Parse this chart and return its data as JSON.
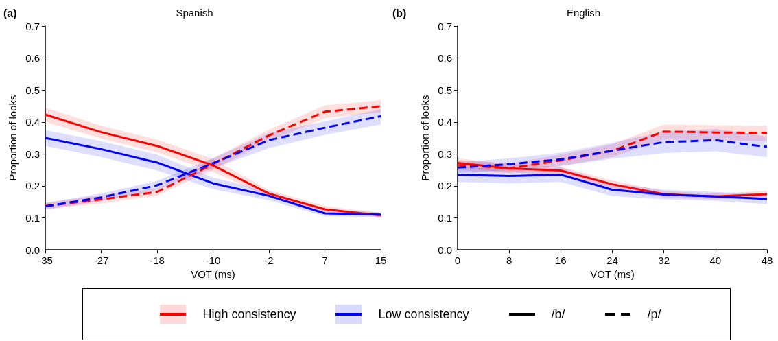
{
  "chart_data": [
    {
      "type": "line",
      "title": "Spanish",
      "xlabel": "VOT (ms)",
      "ylabel": "Proportion of looks",
      "categories": [
        "-35",
        "-27",
        "-18",
        "-10",
        "-2",
        "7",
        "15"
      ],
      "ylim": [
        0,
        0.7
      ],
      "yticks": [
        {
          "value": 0,
          "label": "0.0"
        },
        0.1,
        0.2,
        0.3,
        0.4,
        0.5,
        0.6,
        0.7
      ],
      "annotations": [
        "(a)"
      ],
      "legend": "bottom",
      "series": [
        {
          "name": "High consistency",
          "color": "#ff0000",
          "line_style": "solid",
          "values": [
            0.423,
            0.368,
            0.325,
            0.264,
            0.176,
            0.127,
            0.108
          ],
          "lower": [
            0.4,
            0.348,
            0.305,
            0.244,
            0.165,
            0.117,
            0.1
          ],
          "upper": [
            0.445,
            0.388,
            0.345,
            0.284,
            0.187,
            0.137,
            0.116
          ]
        },
        {
          "name": "Low consistency",
          "color": "#0000ff",
          "line_style": "solid",
          "values": [
            0.35,
            0.315,
            0.273,
            0.208,
            0.169,
            0.114,
            0.11
          ],
          "lower": [
            0.325,
            0.29,
            0.248,
            0.19,
            0.155,
            0.105,
            0.102
          ],
          "upper": [
            0.375,
            0.34,
            0.298,
            0.226,
            0.183,
            0.123,
            0.118
          ]
        },
        {
          "color": "#ff0000",
          "line_style": "dashed",
          "values": [
            0.137,
            0.158,
            0.181,
            0.268,
            0.358,
            0.432,
            0.449
          ],
          "lower": [
            0.127,
            0.145,
            0.17,
            0.25,
            0.34,
            0.412,
            0.43
          ],
          "upper": [
            0.147,
            0.171,
            0.192,
            0.286,
            0.376,
            0.452,
            0.468
          ]
        },
        {
          "color": "#0000ff",
          "line_style": "dashed",
          "values": [
            0.136,
            0.164,
            0.202,
            0.271,
            0.343,
            0.382,
            0.418
          ],
          "lower": [
            0.126,
            0.152,
            0.188,
            0.255,
            0.318,
            0.36,
            0.392
          ],
          "upper": [
            0.146,
            0.176,
            0.216,
            0.287,
            0.365,
            0.402,
            0.44
          ]
        }
      ]
    },
    {
      "type": "line",
      "title": "English",
      "xlabel": "VOT (ms)",
      "ylabel": "Proportion of looks",
      "x": [
        0,
        8,
        16,
        24,
        32,
        40,
        48
      ],
      "xlim": [
        0,
        48
      ],
      "xticks": [
        0,
        8,
        16,
        24,
        32,
        40,
        48
      ],
      "ylim": [
        0,
        0.7
      ],
      "yticks": [
        {
          "value": 0,
          "label": "0.0"
        },
        0.1,
        0.2,
        0.3,
        0.4,
        0.5,
        0.6,
        0.7
      ],
      "annotations": [
        "(b)",
        "/b/",
        "/p/"
      ],
      "legend": "bottom",
      "series": [
        {
          "color": "#ff0000",
          "line_style": "solid",
          "values": [
            0.272,
            0.255,
            0.248,
            0.205,
            0.174,
            0.167,
            0.174
          ],
          "lower": [
            0.258,
            0.242,
            0.236,
            0.193,
            0.164,
            0.158,
            0.163
          ],
          "upper": [
            0.286,
            0.268,
            0.26,
            0.217,
            0.184,
            0.176,
            0.185
          ]
        },
        {
          "color": "#0000ff",
          "line_style": "solid",
          "values": [
            0.235,
            0.231,
            0.235,
            0.188,
            0.173,
            0.167,
            0.159
          ],
          "lower": [
            0.212,
            0.208,
            0.212,
            0.168,
            0.158,
            0.153,
            0.143
          ],
          "upper": [
            0.258,
            0.254,
            0.258,
            0.208,
            0.188,
            0.181,
            0.175
          ]
        },
        {
          "color": "#ff0000",
          "line_style": "dashed",
          "values": [
            0.265,
            0.255,
            0.28,
            0.31,
            0.37,
            0.367,
            0.366
          ],
          "lower": [
            0.25,
            0.24,
            0.262,
            0.29,
            0.345,
            0.343,
            0.34
          ],
          "upper": [
            0.28,
            0.27,
            0.298,
            0.33,
            0.392,
            0.39,
            0.388
          ]
        },
        {
          "color": "#0000ff",
          "line_style": "dashed",
          "values": [
            0.257,
            0.268,
            0.283,
            0.31,
            0.337,
            0.343,
            0.322
          ],
          "lower": [
            0.24,
            0.25,
            0.262,
            0.285,
            0.303,
            0.308,
            0.29
          ],
          "upper": [
            0.274,
            0.286,
            0.304,
            0.335,
            0.37,
            0.378,
            0.355
          ]
        }
      ]
    }
  ]
}
